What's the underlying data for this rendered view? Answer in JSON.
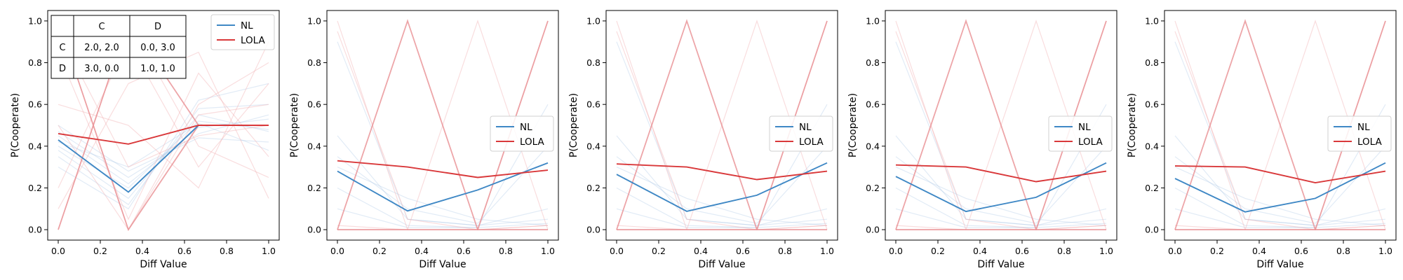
{
  "figure": {
    "colors": {
      "nl": "#3f88c5",
      "lola": "#d9383a",
      "nl_faint": "#a9c7e6",
      "lola_faint": "#f2b3b5",
      "lola_mid": "#e88f92"
    }
  },
  "chart_data": [
    {
      "type": "line",
      "xlabel": "Diff Value",
      "ylabel": "P(Cooperate)",
      "xlim": [
        -0.05,
        1.05
      ],
      "ylim": [
        -0.05,
        1.05
      ],
      "xticks": [
        "0.0",
        "0.2",
        "0.4",
        "0.6",
        "0.8",
        "1.0"
      ],
      "yticks": [
        "0.0",
        "0.2",
        "0.4",
        "0.6",
        "0.8",
        "1.0"
      ],
      "x": [
        0,
        0.3333,
        0.6667,
        1
      ],
      "legend": {
        "position": "top-right",
        "entries": [
          "NL",
          "LOLA"
        ]
      },
      "series": [
        {
          "name": "NL",
          "values": [
            0.43,
            0.18,
            0.5,
            0.5
          ]
        },
        {
          "name": "LOLA",
          "values": [
            0.46,
            0.41,
            0.5,
            0.5
          ]
        }
      ],
      "background_runs": {
        "nl": [
          [
            0.4,
            0.2,
            0.52,
            0.48
          ],
          [
            0.45,
            0.22,
            0.49,
            0.53
          ],
          [
            0.38,
            0.15,
            0.55,
            0.47
          ],
          [
            0.47,
            0.25,
            0.46,
            0.55
          ],
          [
            0.35,
            0.12,
            0.58,
            0.6
          ],
          [
            0.5,
            0.28,
            0.44,
            0.42
          ],
          [
            0.3,
            0.1,
            0.62,
            0.7
          ],
          [
            0.42,
            0.3,
            0.51,
            0.38
          ]
        ],
        "lola": [
          [
            0.0,
            1.0,
            0.4,
            0.25
          ],
          [
            1.0,
            0.0,
            0.6,
            0.8
          ],
          [
            0.2,
            0.9,
            0.3,
            0.7
          ],
          [
            0.85,
            0.05,
            0.75,
            0.35
          ],
          [
            0.6,
            0.5,
            0.2,
            0.9
          ],
          [
            0.1,
            0.7,
            0.85,
            0.15
          ],
          [
            0.5,
            0.0,
            0.55,
            0.6
          ],
          [
            0.95,
            0.3,
            0.45,
            0.5
          ]
        ],
        "lola_emphasis": [
          [
            0.0,
            1.0,
            0.5,
            0.5
          ],
          [
            1.0,
            0.0,
            0.5,
            0.5
          ]
        ]
      },
      "payoff_table": {
        "col_headers": [
          "",
          "C",
          "D"
        ],
        "rows": [
          {
            "label": "C",
            "cells": [
              "2.0, 2.0",
              "0.0, 3.0"
            ]
          },
          {
            "label": "D",
            "cells": [
              "3.0, 0.0",
              "1.0, 1.0"
            ]
          }
        ]
      }
    },
    {
      "type": "line",
      "xlabel": "Diff Value",
      "ylabel": "P(Cooperate)",
      "xlim": [
        -0.05,
        1.05
      ],
      "ylim": [
        -0.05,
        1.05
      ],
      "xticks": [
        "0.0",
        "0.2",
        "0.4",
        "0.6",
        "0.8",
        "1.0"
      ],
      "yticks": [
        "0.0",
        "0.2",
        "0.4",
        "0.6",
        "0.8",
        "1.0"
      ],
      "x": [
        0,
        0.3333,
        0.6667,
        1
      ],
      "legend": {
        "position": "center-right",
        "entries": [
          "NL",
          "LOLA"
        ]
      },
      "series": [
        {
          "name": "NL",
          "values": [
            0.28,
            0.09,
            0.19,
            0.32
          ]
        },
        {
          "name": "LOLA",
          "values": [
            0.33,
            0.3,
            0.25,
            0.285
          ]
        }
      ],
      "background_runs": {
        "nl": [
          [
            0.45,
            0.05,
            0.02,
            0.05
          ],
          [
            0.35,
            0.1,
            0.03,
            0.4
          ],
          [
            0.2,
            0.02,
            0.01,
            0.6
          ],
          [
            0.9,
            0.05,
            0.02,
            0.1
          ],
          [
            0.3,
            0.15,
            0.05,
            0.02
          ],
          [
            0.1,
            0.01,
            0.01,
            0.03
          ]
        ],
        "lola": [
          [
            1.0,
            0.0,
            0.0,
            0.0
          ],
          [
            0.0,
            0.0,
            0.0,
            1.0
          ],
          [
            0.0,
            0.0,
            1.0,
            0.0
          ],
          [
            0.95,
            0.05,
            0.0,
            0.02
          ],
          [
            0.02,
            0.0,
            0.0,
            0.02
          ]
        ],
        "lola_emphasis": [
          [
            0.0,
            1.0,
            0.0,
            0.0
          ],
          [
            0.0,
            0.0,
            0.0,
            1.0
          ]
        ]
      }
    },
    {
      "type": "line",
      "xlabel": "Diff Value",
      "ylabel": "P(Cooperate)",
      "xlim": [
        -0.05,
        1.05
      ],
      "ylim": [
        -0.05,
        1.05
      ],
      "xticks": [
        "0.0",
        "0.2",
        "0.4",
        "0.6",
        "0.8",
        "1.0"
      ],
      "yticks": [
        "0.0",
        "0.2",
        "0.4",
        "0.6",
        "0.8",
        "1.0"
      ],
      "x": [
        0,
        0.3333,
        0.6667,
        1
      ],
      "legend": {
        "position": "center-right",
        "entries": [
          "NL",
          "LOLA"
        ]
      },
      "series": [
        {
          "name": "NL",
          "values": [
            0.265,
            0.088,
            0.165,
            0.32
          ]
        },
        {
          "name": "LOLA",
          "values": [
            0.315,
            0.3,
            0.24,
            0.28
          ]
        }
      ],
      "background_runs": {
        "nl": [
          [
            0.45,
            0.05,
            0.02,
            0.05
          ],
          [
            0.35,
            0.1,
            0.03,
            0.4
          ],
          [
            0.2,
            0.02,
            0.01,
            0.6
          ],
          [
            0.9,
            0.05,
            0.02,
            0.1
          ],
          [
            0.3,
            0.15,
            0.05,
            0.02
          ],
          [
            0.1,
            0.01,
            0.01,
            0.03
          ]
        ],
        "lola": [
          [
            1.0,
            0.0,
            0.0,
            0.0
          ],
          [
            0.0,
            0.0,
            0.0,
            1.0
          ],
          [
            0.0,
            0.0,
            1.0,
            0.0
          ],
          [
            0.95,
            0.05,
            0.0,
            0.02
          ],
          [
            0.02,
            0.0,
            0.0,
            0.02
          ]
        ],
        "lola_emphasis": [
          [
            0.0,
            1.0,
            0.0,
            0.0
          ],
          [
            0.0,
            0.0,
            0.0,
            1.0
          ]
        ]
      }
    },
    {
      "type": "line",
      "xlabel": "Diff Value",
      "ylabel": "P(Cooperate)",
      "xlim": [
        -0.05,
        1.05
      ],
      "ylim": [
        -0.05,
        1.05
      ],
      "xticks": [
        "0.0",
        "0.2",
        "0.4",
        "0.6",
        "0.8",
        "1.0"
      ],
      "yticks": [
        "0.0",
        "0.2",
        "0.4",
        "0.6",
        "0.8",
        "1.0"
      ],
      "x": [
        0,
        0.3333,
        0.6667,
        1
      ],
      "legend": {
        "position": "center-right",
        "entries": [
          "NL",
          "LOLA"
        ]
      },
      "series": [
        {
          "name": "NL",
          "values": [
            0.255,
            0.087,
            0.155,
            0.32
          ]
        },
        {
          "name": "LOLA",
          "values": [
            0.31,
            0.3,
            0.23,
            0.28
          ]
        }
      ],
      "background_runs": {
        "nl": [
          [
            0.45,
            0.05,
            0.02,
            0.05
          ],
          [
            0.35,
            0.1,
            0.03,
            0.4
          ],
          [
            0.2,
            0.02,
            0.01,
            0.6
          ],
          [
            0.9,
            0.05,
            0.02,
            0.1
          ],
          [
            0.3,
            0.15,
            0.05,
            0.02
          ],
          [
            0.1,
            0.01,
            0.01,
            0.03
          ]
        ],
        "lola": [
          [
            1.0,
            0.0,
            0.0,
            0.0
          ],
          [
            0.0,
            0.0,
            0.0,
            1.0
          ],
          [
            0.0,
            0.0,
            1.0,
            0.0
          ],
          [
            0.95,
            0.05,
            0.0,
            0.02
          ],
          [
            0.02,
            0.0,
            0.0,
            0.02
          ]
        ],
        "lola_emphasis": [
          [
            0.0,
            1.0,
            0.0,
            0.0
          ],
          [
            0.0,
            0.0,
            0.0,
            1.0
          ]
        ]
      }
    },
    {
      "type": "line",
      "xlabel": "Diff Value",
      "ylabel": "P(Cooperate)",
      "xlim": [
        -0.05,
        1.05
      ],
      "ylim": [
        -0.05,
        1.05
      ],
      "xticks": [
        "0.0",
        "0.2",
        "0.4",
        "0.6",
        "0.8",
        "1.0"
      ],
      "yticks": [
        "0.0",
        "0.2",
        "0.4",
        "0.6",
        "0.8",
        "1.0"
      ],
      "x": [
        0,
        0.3333,
        0.6667,
        1
      ],
      "legend": {
        "position": "center-right",
        "entries": [
          "NL",
          "LOLA"
        ]
      },
      "series": [
        {
          "name": "NL",
          "values": [
            0.245,
            0.085,
            0.15,
            0.32
          ]
        },
        {
          "name": "LOLA",
          "values": [
            0.305,
            0.3,
            0.225,
            0.28
          ]
        }
      ],
      "background_runs": {
        "nl": [
          [
            0.45,
            0.05,
            0.02,
            0.05
          ],
          [
            0.35,
            0.1,
            0.03,
            0.4
          ],
          [
            0.2,
            0.02,
            0.01,
            0.6
          ],
          [
            0.9,
            0.05,
            0.02,
            0.1
          ],
          [
            0.3,
            0.15,
            0.05,
            0.02
          ],
          [
            0.1,
            0.01,
            0.01,
            0.03
          ]
        ],
        "lola": [
          [
            1.0,
            0.0,
            0.0,
            0.0
          ],
          [
            0.0,
            0.0,
            0.0,
            1.0
          ],
          [
            0.0,
            0.0,
            1.0,
            0.0
          ],
          [
            0.95,
            0.05,
            0.0,
            0.02
          ],
          [
            0.02,
            0.0,
            0.0,
            0.02
          ]
        ],
        "lola_emphasis": [
          [
            0.0,
            1.0,
            0.0,
            0.0
          ],
          [
            0.0,
            0.0,
            0.0,
            1.0
          ]
        ]
      }
    }
  ]
}
